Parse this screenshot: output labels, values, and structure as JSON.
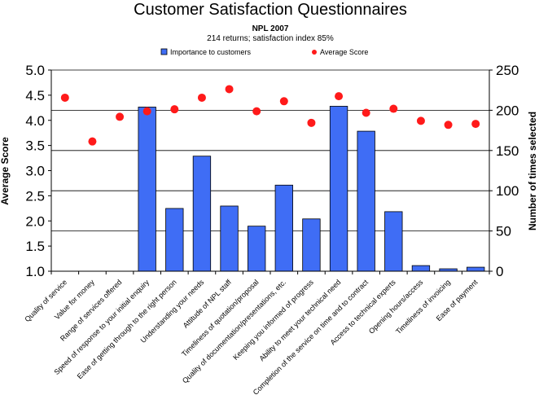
{
  "chart_data": {
    "type": "bar",
    "title": "Customer Satisfaction Questionnaires",
    "subtitle1": "NPL 2007",
    "subtitle2": "214 returns; satisfaction index 85%",
    "ylabel_left": "Average Score",
    "ylabel_right": "Number of times selected",
    "ylim_left": [
      1.0,
      5.0
    ],
    "ylim_right": [
      0,
      250
    ],
    "yticks_left": [
      "1.0",
      "1.5",
      "2.0",
      "2.5",
      "3.0",
      "3.5",
      "4.0",
      "4.5",
      "5.0"
    ],
    "yticks_right": [
      "0",
      "50",
      "100",
      "150",
      "200",
      "250"
    ],
    "grid": true,
    "legend_position": "top",
    "categories": [
      "Quality of service",
      "Value for money",
      "Range of services offered",
      "Speed of response to your initial enquiry",
      "Ease of getting through to the right person",
      "Understanding your needs",
      "Attitude of NPL staff",
      "Timeliness of quotation/proposal",
      "Quality of documentation/presentations, etc.",
      "Keeping you informed of progress",
      "Ability to meet your technical need",
      "Completion of the service on time and to contract",
      "Access to technical experts",
      "Opening hours/access",
      "Timeliness of invoicing",
      "Ease of payment"
    ],
    "series": [
      {
        "name": "Importance to customers",
        "axis": "right",
        "kind": "bar",
        "color": "#3f6df5",
        "values": [
          0,
          0,
          0,
          204,
          78,
          143,
          81,
          56,
          107,
          65,
          205,
          174,
          74,
          7,
          3,
          5
        ]
      },
      {
        "name": "Average Score",
        "axis": "left",
        "kind": "marker",
        "color": "#ff1a1a",
        "values": [
          4.45,
          3.58,
          4.07,
          4.18,
          4.22,
          4.45,
          4.62,
          4.18,
          4.38,
          3.95,
          4.48,
          4.15,
          4.23,
          3.99,
          3.91,
          3.93
        ]
      }
    ]
  }
}
